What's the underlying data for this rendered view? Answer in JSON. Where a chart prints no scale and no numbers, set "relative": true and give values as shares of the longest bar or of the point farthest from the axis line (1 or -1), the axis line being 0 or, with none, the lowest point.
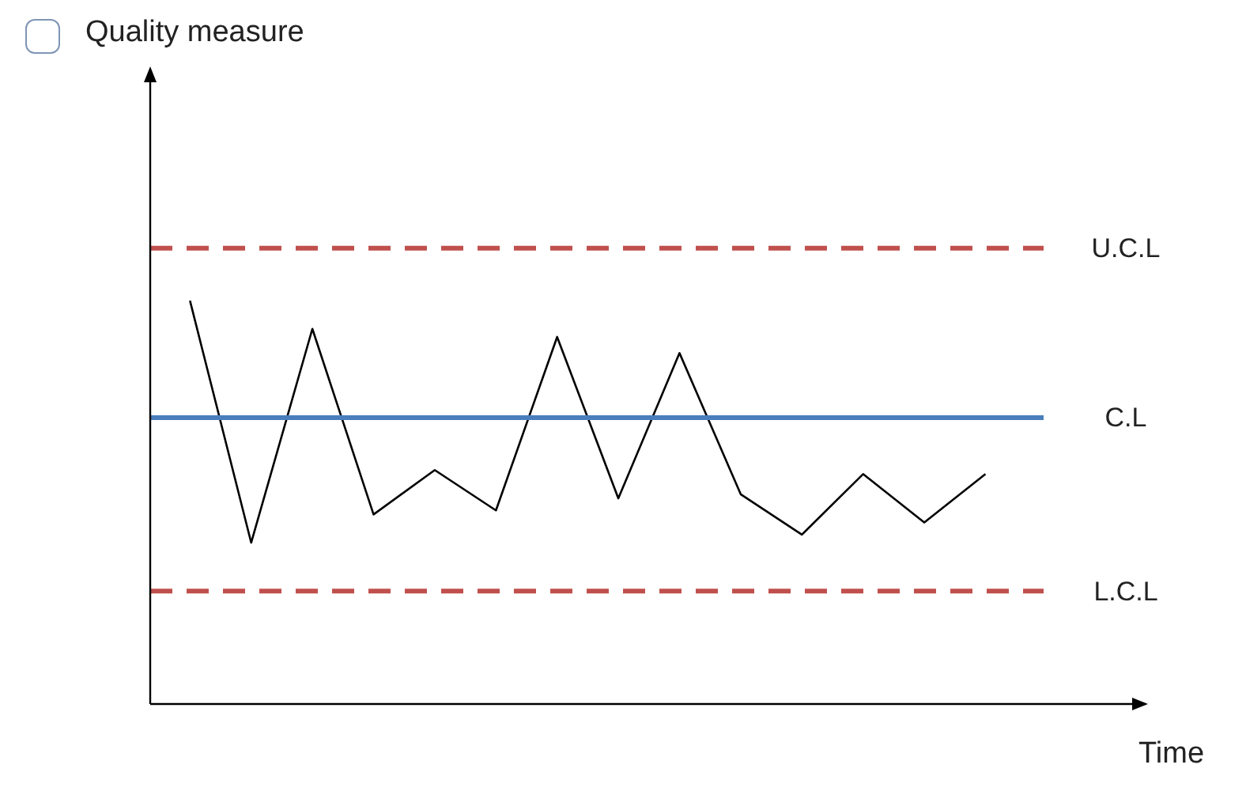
{
  "chart_data": {
    "type": "line",
    "title": "Quality measure",
    "xlabel": "Time",
    "relative": true,
    "categories": [
      null,
      null,
      null,
      null,
      null,
      null,
      null,
      null,
      null,
      null,
      null,
      null,
      null,
      null
    ],
    "series": [
      {
        "color": "#000000",
        "values": [
          1,
          0.4,
          0.93,
          0.47,
          0.58,
          0.48,
          0.91,
          0.51,
          0.87,
          0.52,
          0.42,
          0.57,
          0.45,
          0.57
        ]
      }
    ],
    "ref_lines": [
      {
        "axis": "y",
        "value": 1.13,
        "label": "U.C.L",
        "color": "#c0504d",
        "line_style": "dashed"
      },
      {
        "axis": "y",
        "value": 0.71,
        "label": "C.L",
        "color": "#4a7ebb",
        "line_style": "solid"
      },
      {
        "axis": "y",
        "value": 0.28,
        "label": "L.C.L",
        "color": "#c0504d",
        "line_style": "dashed"
      }
    ]
  }
}
